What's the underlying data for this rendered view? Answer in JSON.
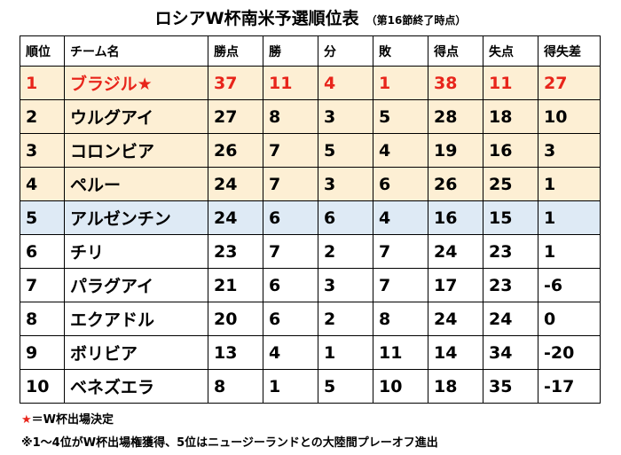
{
  "title": {
    "main": "ロシアW杯南米予選順位表",
    "sub": "（第16節終了時点）"
  },
  "table": {
    "headers": [
      "順位",
      "チーム名",
      "勝点",
      "勝",
      "分",
      "敗",
      "得点",
      "失点",
      "得失差"
    ],
    "rows": [
      {
        "status": "qualified",
        "rank": "1",
        "team": "ブラジル★",
        "points": "37",
        "won": "11",
        "drawn": "4",
        "lost": "1",
        "gf": "38",
        "ga": "11",
        "gd": "27"
      },
      {
        "status": "qualified",
        "rank": "2",
        "team": "ウルグアイ",
        "points": "27",
        "won": "8",
        "drawn": "3",
        "lost": "5",
        "gf": "28",
        "ga": "18",
        "gd": "10"
      },
      {
        "status": "qualified",
        "rank": "3",
        "team": "コロンビア",
        "points": "26",
        "won": "7",
        "drawn": "5",
        "lost": "4",
        "gf": "19",
        "ga": "16",
        "gd": "3"
      },
      {
        "status": "qualified",
        "rank": "4",
        "team": "ペルー",
        "points": "24",
        "won": "7",
        "drawn": "3",
        "lost": "6",
        "gf": "26",
        "ga": "25",
        "gd": "1"
      },
      {
        "status": "playoff",
        "rank": "5",
        "team": "アルゼンチン",
        "points": "24",
        "won": "6",
        "drawn": "6",
        "lost": "4",
        "gf": "16",
        "ga": "15",
        "gd": "1"
      },
      {
        "status": "other",
        "rank": "6",
        "team": "チリ",
        "points": "23",
        "won": "7",
        "drawn": "2",
        "lost": "7",
        "gf": "24",
        "ga": "23",
        "gd": "1"
      },
      {
        "status": "other",
        "rank": "7",
        "team": "パラグアイ",
        "points": "21",
        "won": "6",
        "drawn": "3",
        "lost": "7",
        "gf": "17",
        "ga": "23",
        "gd": "-6"
      },
      {
        "status": "other",
        "rank": "8",
        "team": "エクアドル",
        "points": "20",
        "won": "6",
        "drawn": "2",
        "lost": "8",
        "gf": "24",
        "ga": "24",
        "gd": "0"
      },
      {
        "status": "other",
        "rank": "9",
        "team": "ボリビア",
        "points": "13",
        "won": "4",
        "drawn": "1",
        "lost": "11",
        "gf": "14",
        "ga": "34",
        "gd": "-20"
      },
      {
        "status": "other",
        "rank": "10",
        "team": "ベネズエラ",
        "points": "8",
        "won": "1",
        "drawn": "5",
        "lost": "10",
        "gf": "18",
        "ga": "35",
        "gd": "-17"
      }
    ]
  },
  "legend": {
    "star": "★",
    "star_text": "＝W杯出場決定",
    "note": "※1～4位がW杯出場権獲得、5位はニュージーランドとの大陸間プレーオフ進出"
  },
  "colors": {
    "qualified_row": "#fdefd4",
    "playoff_row": "#deeaf5",
    "winner_text": "#e8251b"
  }
}
